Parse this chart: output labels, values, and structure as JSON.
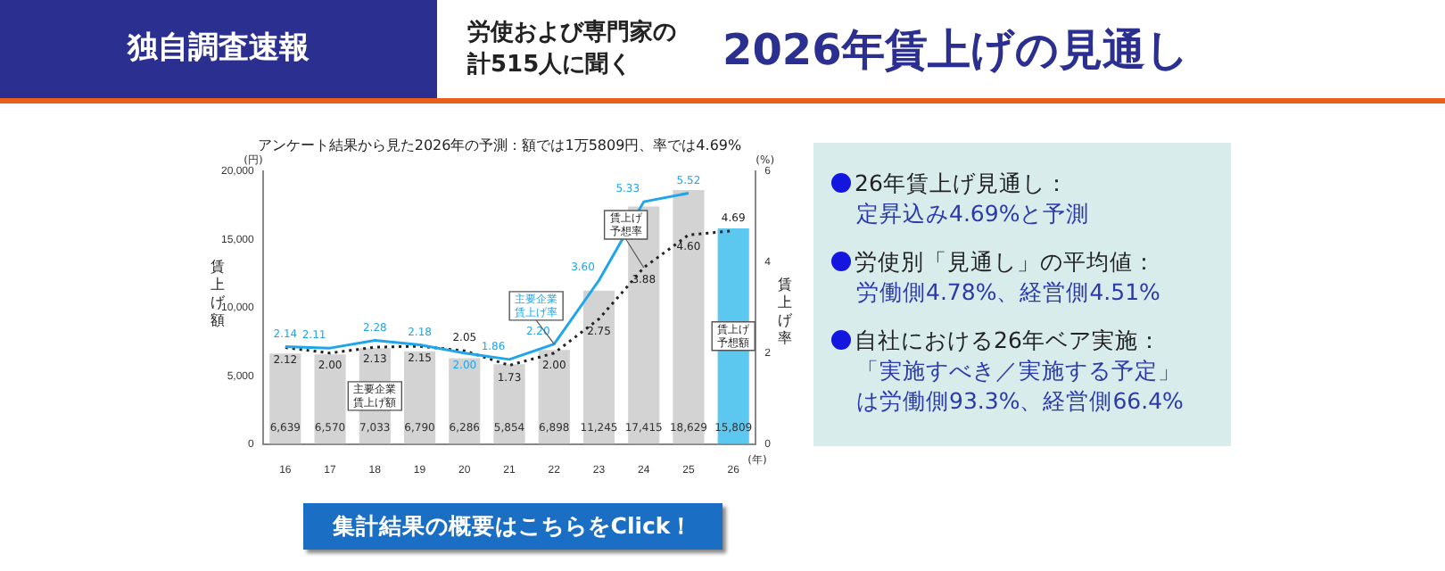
{
  "chart_data": {
    "type": "bar",
    "title": "2026年賃上げの見通し",
    "subtitle": "アンケート結果から見た2026年の予測：額では1万5809円、率では4.69%",
    "ylabel": "賃上げ額",
    "y2label": "賃上げ率",
    "categories": [
      "16",
      "17",
      "18",
      "19",
      "20",
      "21",
      "22",
      "23",
      "24",
      "25",
      "26"
    ],
    "stacked": true,
    "series": [
      {
        "name": "主要企業賃上げ額",
        "color": "#d3d3d3",
        "values": [
          6639,
          6570,
          7033,
          6790,
          6286,
          5854,
          6898,
          11245,
          17415,
          18629,
          null
        ],
        "value_labels": [
          "6,639",
          "6,570",
          "7,033",
          "6,790",
          "6,286",
          "5,854",
          "6,898",
          "11,245",
          "17,415",
          "18,629",
          null
        ]
      },
      {
        "name": "賃上げ予想額",
        "color": "#5cc8f0",
        "values": [
          null,
          null,
          null,
          null,
          null,
          null,
          null,
          null,
          null,
          null,
          15809
        ],
        "value_labels": [
          null,
          null,
          null,
          null,
          null,
          null,
          null,
          null,
          null,
          null,
          "15,809"
        ]
      },
      {
        "name": "主要企業賃上げ率",
        "type": "line",
        "axis": "y2",
        "color": "#1ea5ea",
        "line_style": "solid",
        "marker": "none",
        "values": [
          2.14,
          2.11,
          2.28,
          2.18,
          2.0,
          1.86,
          2.2,
          3.6,
          5.33,
          5.52,
          null
        ],
        "value_labels": [
          "2.14",
          "2.11",
          "2.28",
          "2.18",
          "2.00",
          "1.86",
          "2.20",
          "3.60",
          "5.33",
          "5.52",
          null
        ]
      },
      {
        "name": "賃上げ予想率",
        "type": "line",
        "axis": "y2",
        "color": "#222222",
        "line_style": "dotted",
        "marker": "none",
        "values": [
          2.12,
          2.0,
          2.13,
          2.15,
          2.05,
          1.73,
          2.0,
          2.75,
          3.88,
          4.6,
          4.69
        ],
        "value_labels": [
          "2.12",
          "2.00",
          "2.13",
          "2.15",
          "2.05",
          "1.73",
          "2.00",
          "2.75",
          "3.88",
          "4.60",
          "4.69"
        ]
      }
    ],
    "ylim": [
      0,
      20000
    ],
    "yticks": [
      0,
      {
        "value": 5000,
        "label": "5,000"
      },
      {
        "value": 10000,
        "label": "10,000"
      },
      {
        "value": 15000,
        "label": "15,000"
      },
      {
        "value": 20000,
        "label": "20,000"
      }
    ],
    "y2lim": [
      0,
      6
    ],
    "y2ticks": [
      0,
      2,
      4,
      6
    ],
    "legend": false,
    "annotations": [
      "独自調査速報",
      "労使および専門家の計515人に聞く",
      "26年賃上げ見通し：",
      "定昇込み4.69%と予測",
      "労使別「見通し」の平均値：",
      "労働側4.78%、経営側4.51%",
      "自社における26年ベア実施：",
      "「実施すべき／実施する予定」は労働側93.3%、経営側66.4%",
      "集計結果の概要はこちらをClick！",
      "(円)",
      "(%)",
      "(年)"
    ]
  }
}
